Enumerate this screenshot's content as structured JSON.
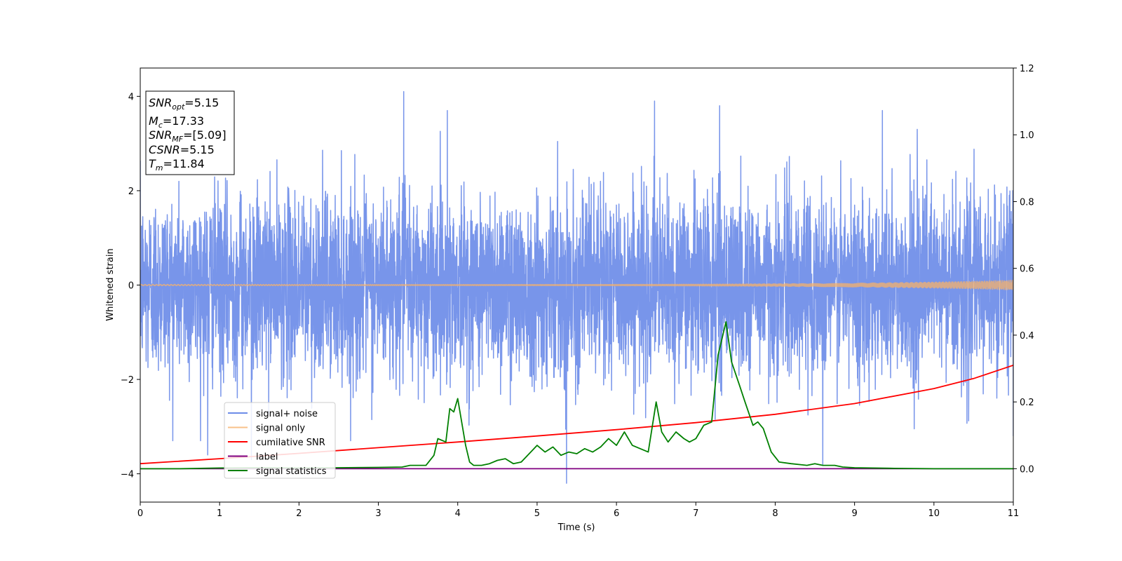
{
  "chart_data": {
    "type": "line",
    "xlabel": "Time (s)",
    "ylabel": "Whitened strain",
    "xlim": [
      0,
      11
    ],
    "ylim": [
      -4.6,
      4.6
    ],
    "y2lim": [
      -0.1,
      1.2
    ],
    "x_ticks": [
      "0",
      "1",
      "2",
      "3",
      "4",
      "5",
      "6",
      "7",
      "8",
      "9",
      "10",
      "11"
    ],
    "y_ticks": [
      "4",
      "2",
      "0",
      "−2",
      "−4"
    ],
    "y2_ticks": [
      "1.2",
      "1.0",
      "0.8",
      "0.6",
      "0.4",
      "0.2",
      "0.0"
    ],
    "legend_position": "lower-left",
    "annotation": {
      "snr_opt_sym": "SNR",
      "snr_opt_sub": "opt",
      "snr_opt_val": "=5.15",
      "mc_sym": "M",
      "mc_sub": "c",
      "mc_val": "=17.33",
      "snr_mf_sym": "SNR",
      "snr_mf_sub": "MF",
      "snr_mf_val": "=[5.09]",
      "csnr_sym": "CSNR",
      "csnr_val": "=5.15",
      "tm_sym": "T",
      "tm_sub": "m",
      "tm_val": "=11.84"
    },
    "series": [
      {
        "name": "signal+ noise",
        "color": "#6d8ce8",
        "axis": "left",
        "kind": "noise",
        "noise_std": 0.95,
        "extremes": [
          [
            3.32,
            4.1
          ],
          [
            3.87,
            3.7
          ],
          [
            6.48,
            3.9
          ],
          [
            7.3,
            3.8
          ],
          [
            9.35,
            3.7
          ],
          [
            5.37,
            -4.2
          ],
          [
            0.85,
            -3.6
          ],
          [
            1.4,
            -3.7
          ],
          [
            8.6,
            -3.8
          ],
          [
            11.0,
            -3.2
          ]
        ]
      },
      {
        "name": "signal only",
        "color": "#f6b26b",
        "axis": "left",
        "kind": "chirp",
        "amp_start": 0.01,
        "amp_end": 0.1
      },
      {
        "name": "cumilative SNR",
        "color": "#ff0000",
        "axis": "right",
        "x": [
          0,
          1,
          2,
          3,
          4,
          5,
          6,
          7,
          8,
          9,
          10,
          10.5,
          11
        ],
        "values": [
          0.015,
          0.03,
          0.046,
          0.063,
          0.08,
          0.098,
          0.117,
          0.138,
          0.163,
          0.195,
          0.24,
          0.27,
          0.31
        ]
      },
      {
        "name": "label",
        "color": "#800080",
        "axis": "right",
        "x": [
          0,
          11
        ],
        "values": [
          0.0,
          0.0
        ]
      },
      {
        "name": "signal statistics",
        "color": "#008000",
        "axis": "right",
        "x": [
          0,
          0.5,
          1,
          1.5,
          2,
          2.5,
          3,
          3.3,
          3.4,
          3.6,
          3.7,
          3.75,
          3.85,
          3.9,
          3.95,
          4.0,
          4.1,
          4.15,
          4.2,
          4.3,
          4.4,
          4.5,
          4.6,
          4.7,
          4.8,
          4.9,
          5.0,
          5.1,
          5.2,
          5.3,
          5.4,
          5.5,
          5.6,
          5.7,
          5.8,
          5.9,
          6.0,
          6.1,
          6.2,
          6.3,
          6.4,
          6.5,
          6.57,
          6.65,
          6.75,
          6.85,
          6.92,
          7.0,
          7.1,
          7.2,
          7.28,
          7.38,
          7.45,
          7.55,
          7.62,
          7.72,
          7.78,
          7.85,
          7.95,
          8.05,
          8.2,
          8.4,
          8.5,
          8.6,
          8.75,
          8.85,
          9.0,
          9.5,
          10.0,
          11.0
        ],
        "values": [
          0.0,
          0.0,
          0.002,
          0.003,
          0.002,
          0.003,
          0.004,
          0.005,
          0.01,
          0.01,
          0.04,
          0.09,
          0.08,
          0.18,
          0.17,
          0.21,
          0.07,
          0.02,
          0.01,
          0.01,
          0.015,
          0.025,
          0.03,
          0.015,
          0.02,
          0.045,
          0.07,
          0.05,
          0.065,
          0.04,
          0.05,
          0.045,
          0.06,
          0.05,
          0.065,
          0.09,
          0.07,
          0.11,
          0.07,
          0.06,
          0.05,
          0.2,
          0.11,
          0.08,
          0.11,
          0.09,
          0.08,
          0.09,
          0.13,
          0.14,
          0.34,
          0.44,
          0.32,
          0.25,
          0.2,
          0.13,
          0.14,
          0.12,
          0.05,
          0.02,
          0.015,
          0.01,
          0.015,
          0.01,
          0.01,
          0.005,
          0.003,
          0.001,
          0.0,
          0.0
        ]
      }
    ]
  }
}
